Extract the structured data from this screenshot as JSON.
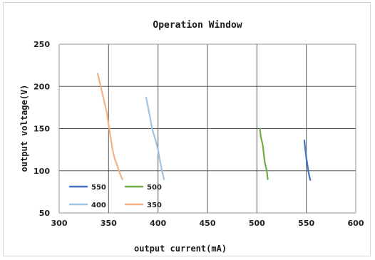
{
  "chart_data": {
    "type": "line",
    "title": "Operation Window",
    "xlabel": "output current(mA)",
    "ylabel": "output voltage(V)",
    "xlim": [
      300,
      600
    ],
    "ylim": [
      50,
      250
    ],
    "x_ticks": [
      "300",
      "350",
      "400",
      "450",
      "500",
      "550",
      "600"
    ],
    "y_ticks": [
      "50",
      "100",
      "150",
      "200",
      "250"
    ],
    "grid": true,
    "legend_position": "bottom-left",
    "series": [
      {
        "name": "550",
        "color": "#4472c4",
        "points": [
          [
            548,
            136
          ],
          [
            549,
            125
          ],
          [
            550,
            115
          ],
          [
            551,
            108
          ],
          [
            552,
            100
          ],
          [
            553,
            94
          ],
          [
            554,
            89
          ]
        ]
      },
      {
        "name": "500",
        "color": "#70ad47",
        "points": [
          [
            503,
            150
          ],
          [
            504,
            140
          ],
          [
            506,
            130
          ],
          [
            507,
            120
          ],
          [
            508,
            110
          ],
          [
            510,
            100
          ],
          [
            511,
            90
          ]
        ]
      },
      {
        "name": "400",
        "color": "#9dc3e6",
        "points": [
          [
            388,
            187
          ],
          [
            390,
            175
          ],
          [
            392,
            163
          ],
          [
            394,
            150
          ],
          [
            397,
            138
          ],
          [
            400,
            125
          ],
          [
            402,
            112
          ],
          [
            404,
            100
          ],
          [
            406,
            90
          ]
        ]
      },
      {
        "name": "350",
        "color": "#f4b183",
        "points": [
          [
            339,
            215
          ],
          [
            342,
            200
          ],
          [
            345,
            185
          ],
          [
            348,
            170
          ],
          [
            350,
            155
          ],
          [
            352,
            140
          ],
          [
            354,
            125
          ],
          [
            356,
            115
          ],
          [
            359,
            105
          ],
          [
            362,
            95
          ],
          [
            364,
            90
          ]
        ]
      }
    ]
  }
}
